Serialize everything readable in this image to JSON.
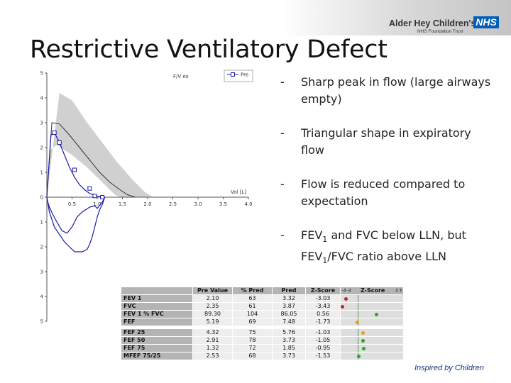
{
  "header": {
    "brand_name": "Alder Hey Children's",
    "nhs_badge": "NHS",
    "trust_name": "NHS Foundation Trust"
  },
  "slide": {
    "title": "Restrictive Ventilatory Defect",
    "bullets": [
      {
        "dash": "-",
        "text": "Sharp peak in flow (large airways empty)"
      },
      {
        "dash": "-",
        "text": "Triangular shape in expiratory flow"
      },
      {
        "dash": "-",
        "text": "Flow is reduced compared to expectation"
      },
      {
        "dash": "-",
        "parts": [
          "FEV",
          "1",
          " and FVC below LLN, but FEV",
          "1",
          "/FVC ratio above LLN"
        ]
      }
    ],
    "tagline": "Inspired by Children"
  },
  "chart_data": {
    "type": "line",
    "title": "F/V ex",
    "xlabel": "Vol [L]",
    "ylabel": "",
    "x_ticks": [
      "0.5",
      "1.0",
      "1.5",
      "2.0",
      "2.5",
      "3.0",
      "3.5",
      "4.0"
    ],
    "y_ticks": [
      "5",
      "4",
      "3",
      "2",
      "1",
      "0",
      "1",
      "2",
      "3",
      "4",
      "5"
    ],
    "xlim": [
      0,
      4.0
    ],
    "ylim": [
      -5,
      5
    ],
    "legend": {
      "placement": "top-right",
      "entries": [
        "Pre"
      ]
    },
    "colors": {
      "pre": "#1a1aa8",
      "predicted": "#333333",
      "band": "#d0d0d0"
    },
    "series": [
      {
        "name": "Pre",
        "x": [
          0,
          0.08,
          0.15,
          0.25,
          0.35,
          0.45,
          0.55,
          0.65,
          0.75,
          0.85,
          0.95,
          1.05,
          1.15,
          1.1,
          1.0,
          0.95,
          0.85,
          0.7,
          0.6,
          0.5,
          0.4,
          0.3,
          0.2,
          0.12,
          0.05,
          0.02,
          0,
          0.05,
          0.15,
          0.35,
          0.55,
          0.7,
          0.8,
          0.85,
          0.9,
          0.95,
          1.0,
          1.05,
          1.1,
          1.15
        ],
        "y": [
          0,
          2.5,
          2.6,
          2.2,
          1.7,
          1.2,
          0.8,
          0.5,
          0.3,
          0.15,
          0.08,
          0.02,
          0.0,
          -0.2,
          -0.45,
          -0.35,
          -0.4,
          -0.6,
          -0.8,
          -1.2,
          -1.45,
          -1.35,
          -1.0,
          -0.7,
          -0.4,
          -0.2,
          0,
          -0.6,
          -1.2,
          -1.8,
          -2.2,
          -2.2,
          -2.1,
          -1.9,
          -1.6,
          -1.2,
          -0.8,
          -0.5,
          -0.3,
          0
        ]
      },
      {
        "name": "",
        "x": [
          0,
          0.1,
          0.25,
          0.45,
          0.65,
          0.85,
          1.05,
          1.25,
          1.45,
          1.6,
          1.75
        ],
        "y": [
          0,
          3.0,
          2.95,
          2.5,
          2.0,
          1.5,
          1.0,
          0.6,
          0.3,
          0.1,
          0
        ]
      }
    ],
    "markers": [
      {
        "x": 0.15,
        "y": 2.6
      },
      {
        "x": 0.25,
        "y": 2.2
      },
      {
        "x": 0.55,
        "y": 1.1
      },
      {
        "x": 0.85,
        "y": 0.35
      },
      {
        "x": 0.95,
        "y": 0.05
      },
      {
        "x": 1.1,
        "y": 0.0
      }
    ],
    "band_upper": {
      "x": [
        0,
        0.25,
        0.5,
        0.8,
        1.1,
        1.4,
        1.7,
        1.95,
        2.1
      ],
      "y": [
        0,
        4.2,
        3.9,
        3.0,
        2.2,
        1.4,
        0.7,
        0.2,
        0
      ]
    },
    "band_lower": {
      "x": [
        0,
        0.05,
        0.2,
        0.5,
        0.8,
        1.0,
        1.2,
        1.35,
        1.45
      ],
      "y": [
        0,
        1.9,
        2.1,
        1.7,
        1.2,
        0.8,
        0.4,
        0.1,
        0
      ]
    }
  },
  "table": {
    "headers": [
      "",
      "Pre Value",
      "% Pred",
      "Pred",
      "Z-Score",
      "Z-Score"
    ],
    "z_scale_left": "-3  -2",
    "z_scale_right": "2  3",
    "groups": [
      [
        {
          "label": "FEV 1",
          "pre": "2.10",
          "pct": "63",
          "pred": "3.32",
          "z": "-3.03",
          "z_num": -3.03,
          "dot": "#cc2222"
        },
        {
          "label": "FVC",
          "pre": "2.35",
          "pct": "61",
          "pred": "3.87",
          "z": "-3.43",
          "z_num": -3.43,
          "dot": "#cc2222"
        },
        {
          "label": "FEV 1 % FVC",
          "pre": "89.30",
          "pct": "104",
          "pred": "86.05",
          "z": "0.56",
          "z_num": 0.56,
          "dot": "#22aa22"
        },
        {
          "label": "FEF",
          "pre": "5.19",
          "pct": "69",
          "pred": "7.48",
          "z": "-1.73",
          "z_num": -1.73,
          "dot": "#e0a010"
        }
      ],
      [
        {
          "label": "FEF 25",
          "pre": "4.32",
          "pct": "75",
          "pred": "5.76",
          "z": "-1.03",
          "z_num": -1.03,
          "dot": "#e0a010"
        },
        {
          "label": "FEF 50",
          "pre": "2.91",
          "pct": "78",
          "pred": "3.73",
          "z": "-1.05",
          "z_num": -1.05,
          "dot": "#22aa22"
        },
        {
          "label": "FEF 75",
          "pre": "1.32",
          "pct": "72",
          "pred": "1.85",
          "z": "-0.95",
          "z_num": -0.95,
          "dot": "#22aa22"
        },
        {
          "label": "MFEF 75/25",
          "pre": "2.53",
          "pct": "68",
          "pred": "3.73",
          "z": "-1.53",
          "z_num": -1.53,
          "dot": "#22aa22"
        }
      ]
    ]
  }
}
